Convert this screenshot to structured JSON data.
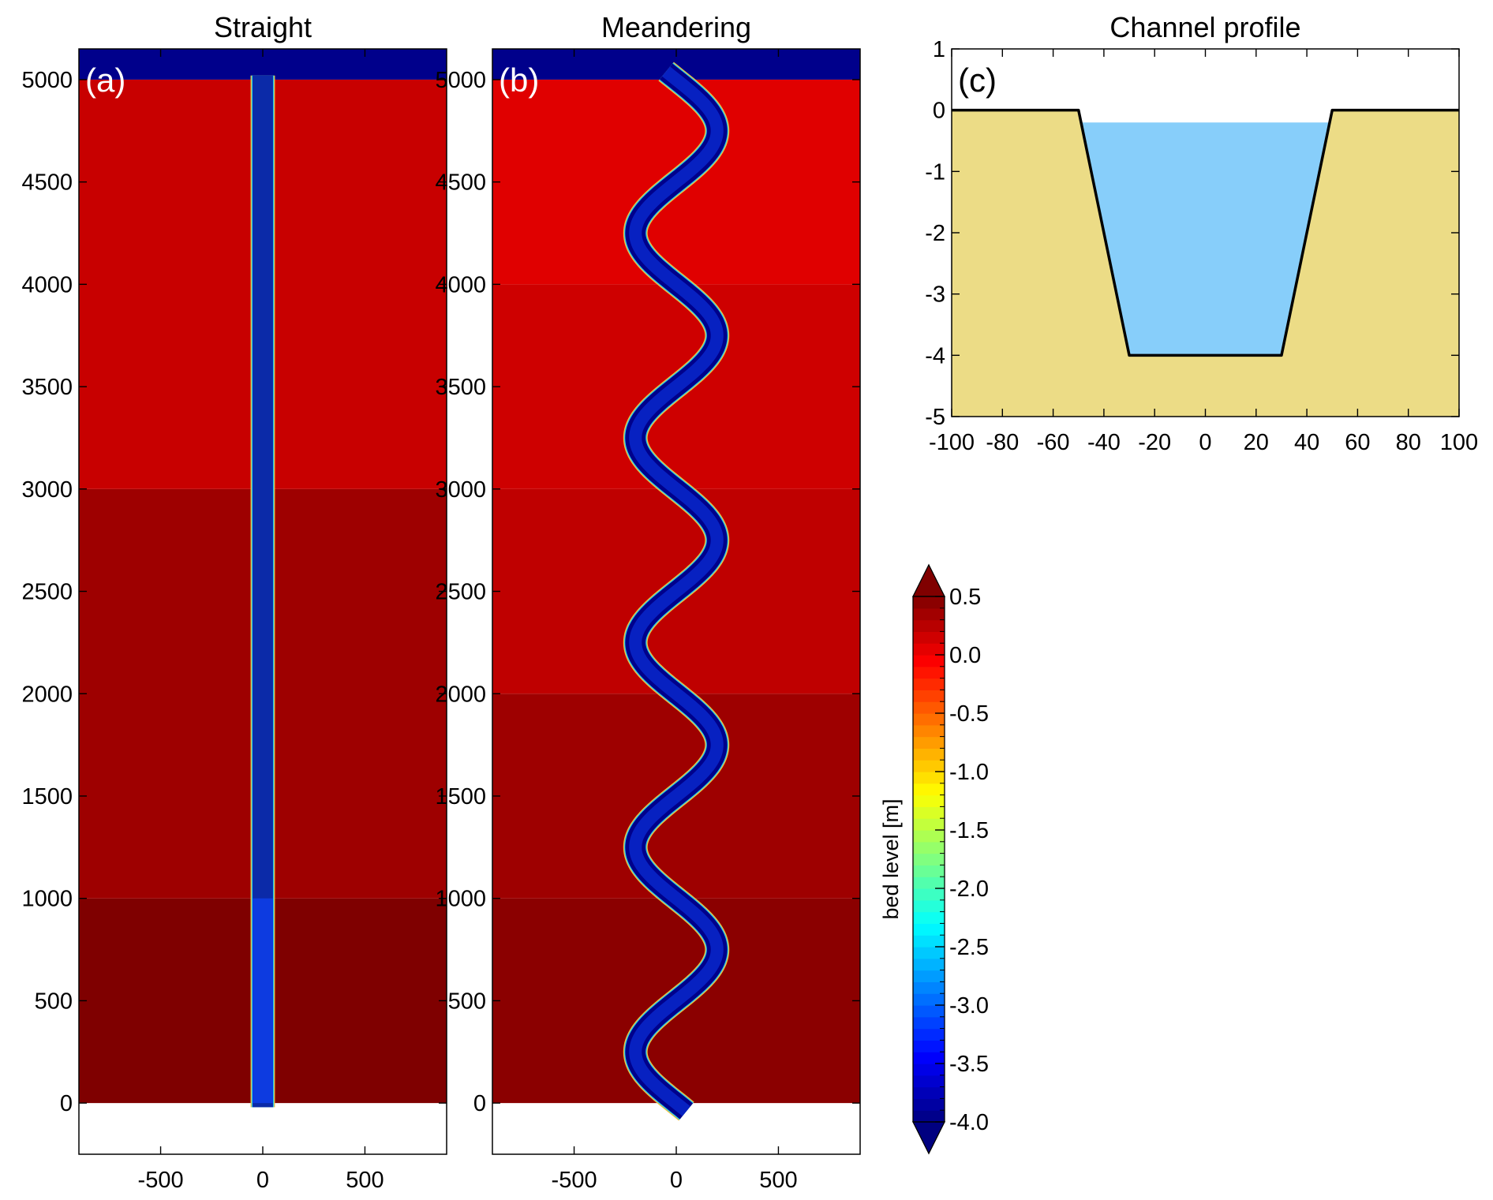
{
  "chart_data": [
    {
      "id": "a",
      "type": "heatmap",
      "title": "Straight",
      "panel_label": "(a)",
      "x_ticks": [
        -500,
        0,
        500
      ],
      "y_ticks": [
        0,
        500,
        1000,
        1500,
        2000,
        2500,
        3000,
        3500,
        4000,
        4500,
        5000
      ],
      "xlim": [
        -900,
        900
      ],
      "ylim": [
        -250,
        5150
      ],
      "floodplain_bands": [
        {
          "y0": 0,
          "y1": 1000,
          "color": "#7f0000"
        },
        {
          "y0": 1000,
          "y1": 3000,
          "color": "#9e0000"
        },
        {
          "y0": 3000,
          "y1": 5000,
          "color": "#c80000"
        }
      ],
      "channel": {
        "shape": "straight",
        "width": 100,
        "color": "#0b2aa8"
      },
      "boundary_top": {
        "y0": 5000,
        "y1": 5150,
        "color": "#00008b"
      },
      "boundary_bottom": {
        "y0": -250,
        "y1": 0,
        "color": "#0000ff"
      }
    },
    {
      "id": "b",
      "type": "heatmap",
      "title": "Meandering",
      "panel_label": "(b)",
      "x_ticks": [
        -500,
        0,
        500
      ],
      "y_ticks": [
        0,
        500,
        1000,
        1500,
        2000,
        2500,
        3000,
        3500,
        4000,
        4500,
        5000
      ],
      "xlim": [
        -900,
        900
      ],
      "ylim": [
        -250,
        5150
      ],
      "floodplain_bands": [
        {
          "y0": 0,
          "y1": 1000,
          "color": "#8b0000"
        },
        {
          "y0": 1000,
          "y1": 2000,
          "color": "#9e0000"
        },
        {
          "y0": 2000,
          "y1": 3000,
          "color": "#bf0000"
        },
        {
          "y0": 3000,
          "y1": 4000,
          "color": "#ce0000"
        },
        {
          "y0": 4000,
          "y1": 5000,
          "color": "#e00000"
        }
      ],
      "channel": {
        "shape": "sine",
        "amplitude": 200,
        "wavelength": 1000,
        "width": 100,
        "color": "#00008b"
      },
      "boundary_top": {
        "y0": 5000,
        "y1": 5150,
        "color": "#00008b"
      },
      "boundary_bottom": {
        "y0": -250,
        "y1": 0,
        "color": "#0a2bd0"
      }
    },
    {
      "id": "c",
      "type": "area",
      "title": "Channel profile",
      "panel_label": "(c)",
      "xlim": [
        -100,
        100
      ],
      "ylim": [
        -5,
        1
      ],
      "x_ticks": [
        -100,
        -80,
        -60,
        -40,
        -20,
        0,
        20,
        40,
        60,
        80,
        100
      ],
      "y_ticks": [
        1,
        0,
        -1,
        -2,
        -3,
        -4,
        -5
      ],
      "bed_profile": [
        [
          -100,
          0
        ],
        [
          -50,
          0
        ],
        [
          -30,
          -4
        ],
        [
          30,
          -4
        ],
        [
          50,
          0
        ],
        [
          100,
          0
        ]
      ],
      "water_level": -0.2,
      "sediment_color": "#ecdc86",
      "water_color": "#87cefa"
    }
  ],
  "colorbar": {
    "label": "bed level [m]",
    "ticks": [
      "0.5",
      "0.0",
      "-0.5",
      "-1.0",
      "-1.5",
      "-2.0",
      "-2.5",
      "-3.0",
      "-3.5",
      "-4.0"
    ],
    "min": -4.0,
    "max": 0.5,
    "colormap": "jet",
    "extend": "both"
  }
}
